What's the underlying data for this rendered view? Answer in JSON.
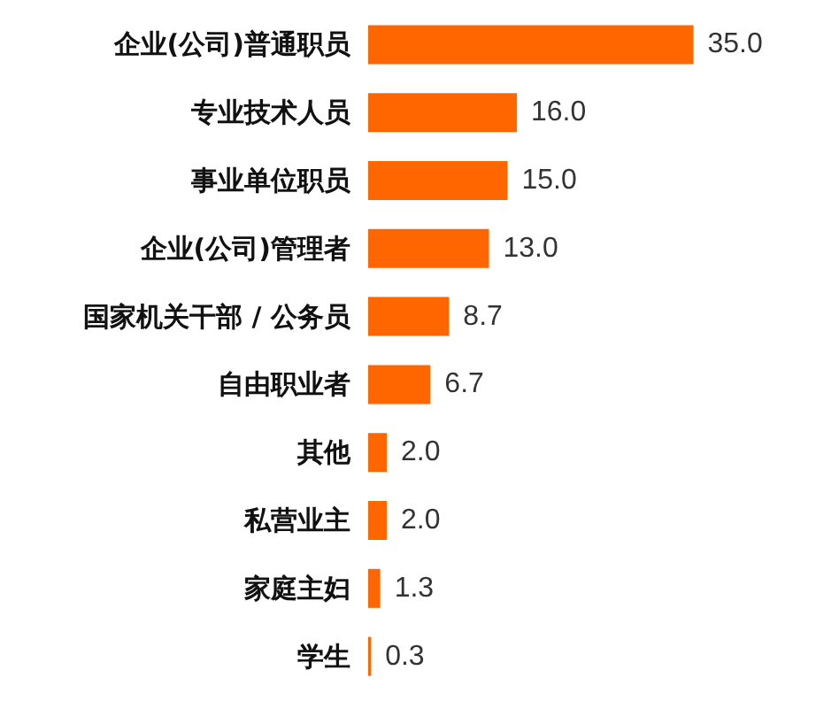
{
  "chart_data": {
    "type": "bar",
    "orientation": "horizontal",
    "categories": [
      "企业(公司)普通职员",
      "专业技术人员",
      "事业单位职员",
      "企业(公司)管理者",
      "国家机关干部 / 公务员",
      "自由职业者",
      "其他",
      "私营业主",
      "家庭主妇",
      "学生"
    ],
    "values": [
      35.0,
      16.0,
      15.0,
      13.0,
      8.7,
      6.7,
      2.0,
      2.0,
      1.3,
      0.3
    ],
    "value_labels": [
      "35.0",
      "16.0",
      "15.0",
      "13.0",
      "8.7",
      "6.7",
      "2.0",
      "2.0",
      "1.3",
      "0.3"
    ],
    "color": "#ff6600"
  }
}
